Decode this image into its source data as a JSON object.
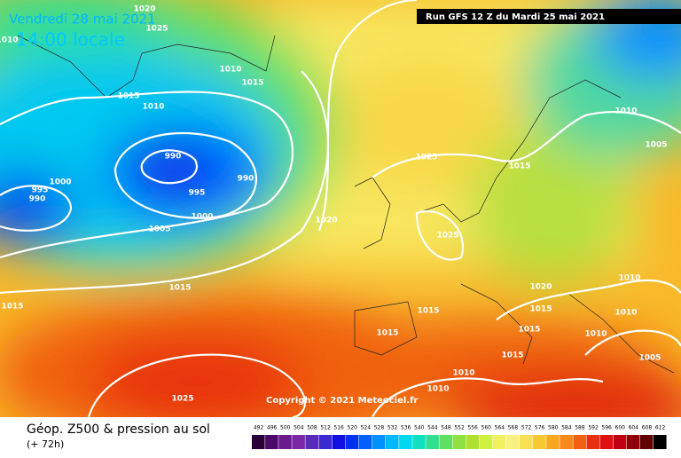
{
  "header": {
    "date": "Vendredi 28 mai 2021",
    "time": "14:00 locale",
    "run": "Run GFS 12 Z du Mardi 25 mai 2021",
    "copyright": "Copyright © 2021 Meteociel.fr"
  },
  "isobar_labels": [
    "1020",
    "1025",
    "1010",
    "1010",
    "1015",
    "1015",
    "1010",
    "990",
    "995",
    "990",
    "1000",
    "995",
    "990",
    "1000",
    "1005",
    "1015",
    "1015",
    "1020",
    "1025",
    "1025",
    "1015",
    "1010",
    "1005",
    "1020",
    "1015",
    "1015",
    "1010",
    "1010",
    "1015",
    "1015",
    "1010",
    "1015",
    "1005",
    "1010",
    "1010",
    "1025"
  ],
  "legend": {
    "title": "Géop. Z500 & pression au sol",
    "subtitle": "(+ 72h)",
    "labels": [
      "492",
      "496",
      "500",
      "504",
      "508",
      "512",
      "516",
      "520",
      "524",
      "528",
      "532",
      "536",
      "540",
      "544",
      "548",
      "552",
      "556",
      "560",
      "564",
      "568",
      "572",
      "576",
      "580",
      "584",
      "588",
      "592",
      "596",
      "600",
      "604",
      "608",
      "612"
    ],
    "colors": [
      "#2a0038",
      "#4b0a6a",
      "#6a1a8c",
      "#7a28a8",
      "#5a2ab8",
      "#3a2ad0",
      "#1010e0",
      "#0030f0",
      "#0060ff",
      "#0090ff",
      "#00b8ff",
      "#00d8f0",
      "#10e0c0",
      "#30e090",
      "#60e060",
      "#90e040",
      "#b0e030",
      "#d0f040",
      "#f0f060",
      "#f8f080",
      "#f8e050",
      "#f8c830",
      "#f8a820",
      "#f88818",
      "#f06010",
      "#e83010",
      "#e01010",
      "#c00010",
      "#900008",
      "#600000",
      "#000000"
    ]
  }
}
